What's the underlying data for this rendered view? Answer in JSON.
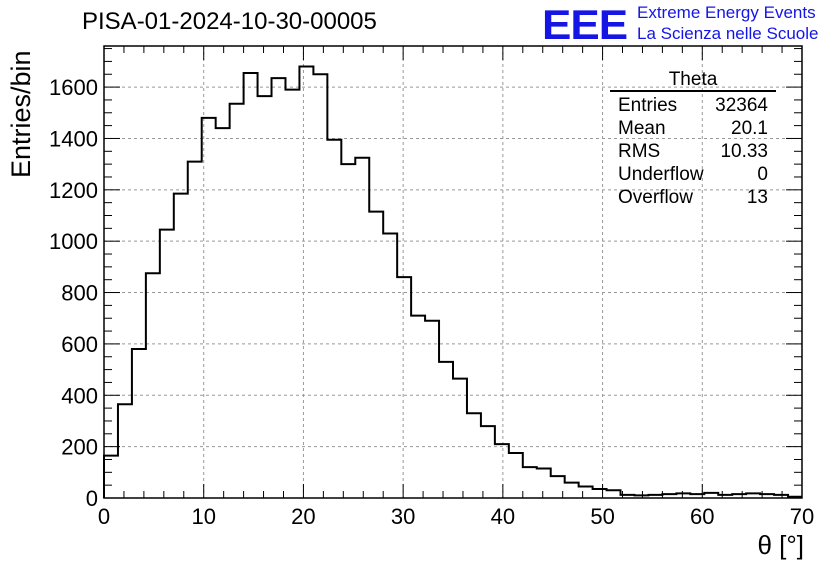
{
  "header": {
    "run_title": "PISA-01-2024-10-30-00005",
    "logo_text": "EEE",
    "org_line1": "Extreme Energy Events",
    "org_line2": "La Scienza nelle Scuole",
    "logo_color": "#1515e6"
  },
  "stats": {
    "name": "Theta",
    "rows": [
      {
        "label": "Entries",
        "value": "32364"
      },
      {
        "label": "Mean",
        "value": "20.1"
      },
      {
        "label": "RMS",
        "value": "10.33"
      },
      {
        "label": "Underflow",
        "value": "0"
      },
      {
        "label": "Overflow",
        "value": "13"
      }
    ]
  },
  "chart_data": {
    "type": "bar",
    "style": "step-histogram",
    "title": "PISA-01-2024-10-30-00005",
    "xlabel": "θ [°]",
    "ylabel": "Entries/bin",
    "xlim": [
      0,
      70
    ],
    "ylim": [
      0,
      1760
    ],
    "xticks": [
      0,
      10,
      20,
      30,
      40,
      50,
      60,
      70
    ],
    "yticks": [
      0,
      200,
      400,
      600,
      800,
      1000,
      1200,
      1400,
      1600
    ],
    "grid": true,
    "legend": "top-right stats box",
    "bin_width": 1.4,
    "values": [
      165,
      365,
      580,
      875,
      1045,
      1185,
      1310,
      1480,
      1440,
      1535,
      1655,
      1565,
      1635,
      1590,
      1680,
      1650,
      1395,
      1300,
      1325,
      1115,
      1030,
      860,
      710,
      690,
      530,
      465,
      330,
      280,
      210,
      175,
      120,
      115,
      85,
      60,
      45,
      35,
      30,
      12,
      10,
      12,
      15,
      18,
      15,
      20,
      12,
      15,
      18,
      15,
      12,
      5
    ]
  }
}
